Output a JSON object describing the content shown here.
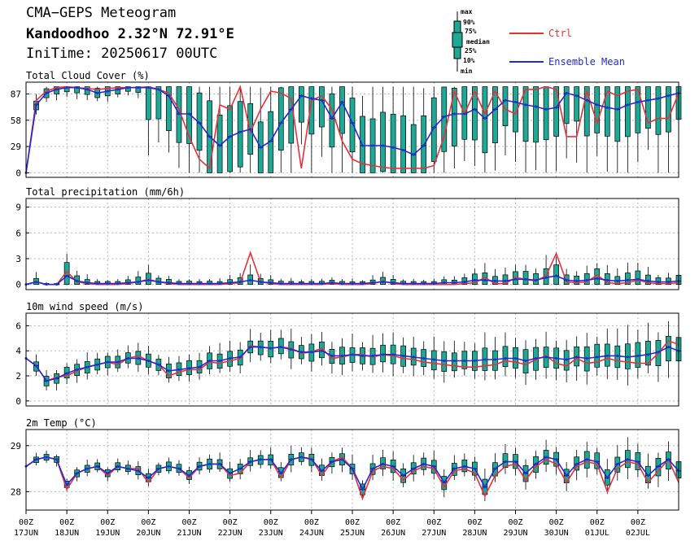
{
  "header": {
    "title": "CMA−GEPS Meteogram",
    "location": "Kandoodhoo 2.32°N 72.91°E",
    "init_time": "IniTime: 20250617 00UTC"
  },
  "legend": {
    "box_labels": [
      "max",
      "90%",
      "75%",
      "median",
      "25%",
      "10%",
      "min"
    ],
    "ctrl": "Ctrl",
    "mean": "Ensemble Mean",
    "ctrl_color": "#e8303a",
    "mean_color": "#1f2bd9",
    "box_color": "#1ea896"
  },
  "chart_data": {
    "type": "line",
    "x_tick_labels": [
      [
        "00Z",
        "17JUN"
      ],
      [
        "00Z",
        "18JUN"
      ],
      [
        "00Z",
        "19JUN"
      ],
      [
        "00Z",
        "20JUN"
      ],
      [
        "00Z",
        "21JUN"
      ],
      [
        "00Z",
        "22JUN"
      ],
      [
        "00Z",
        "23JUN"
      ],
      [
        "00Z",
        "24JUN"
      ],
      [
        "00Z",
        "25JUN"
      ],
      [
        "00Z",
        "26JUN"
      ],
      [
        "00Z",
        "27JUN"
      ],
      [
        "00Z",
        "28JUN"
      ],
      [
        "00Z",
        "29JUN"
      ],
      [
        "00Z",
        "30JUN"
      ],
      [
        "00Z",
        "01JUL"
      ],
      [
        "00Z",
        "02JUL"
      ]
    ],
    "step_hours": 6,
    "panels": [
      {
        "title": "Total Cloud Cover (%)",
        "ylim": [
          -5,
          100
        ],
        "yticks": [
          0,
          29,
          58,
          87
        ],
        "ctrl": [
          0,
          80,
          90,
          94,
          95,
          94,
          93,
          92,
          93,
          94,
          94,
          94,
          95,
          92,
          88,
          70,
          40,
          15,
          5,
          75,
          70,
          95,
          45,
          70,
          90,
          88,
          82,
          5,
          80,
          85,
          70,
          35,
          15,
          10,
          8,
          6,
          5,
          5,
          5,
          5,
          8,
          40,
          90,
          65,
          90,
          65,
          90,
          70,
          65,
          92,
          92,
          95,
          92,
          40,
          40,
          90,
          55,
          90,
          85,
          90,
          92,
          55,
          60,
          60,
          88
        ],
        "mean": [
          0,
          75,
          88,
          92,
          94,
          94,
          92,
          88,
          90,
          92,
          94,
          94,
          94,
          92,
          85,
          65,
          65,
          55,
          40,
          30,
          40,
          45,
          48,
          28,
          35,
          55,
          70,
          85,
          82,
          80,
          60,
          78,
          55,
          30,
          30,
          30,
          28,
          25,
          20,
          30,
          50,
          62,
          65,
          65,
          70,
          60,
          70,
          80,
          78,
          75,
          73,
          70,
          72,
          88,
          85,
          80,
          75,
          72,
          70,
          75,
          78,
          80,
          82,
          85,
          88
        ]
      },
      {
        "title": "Total precipitation (mm/6h)",
        "ylim": [
          -0.6,
          10
        ],
        "yticks": [
          0,
          3,
          6,
          9
        ],
        "ctrl": [
          0,
          0.3,
          0,
          0,
          1.5,
          0.3,
          0.1,
          0,
          0,
          0,
          0.1,
          0.3,
          0.6,
          0.3,
          0.1,
          0,
          0,
          0,
          0,
          0,
          0.1,
          0.2,
          3.7,
          0.3,
          0.1,
          0,
          0,
          0,
          0,
          0,
          0.1,
          0,
          0,
          0,
          0.1,
          0.4,
          0.1,
          0,
          0,
          0,
          0,
          0,
          0,
          0.1,
          0.2,
          0.8,
          0.1,
          0.1,
          0.8,
          0.6,
          0.4,
          1,
          3.6,
          0.3,
          0.2,
          0.3,
          1.1,
          0.2,
          0.1,
          0.2,
          0.5,
          0.2,
          0.1,
          0.1,
          0.2
        ],
        "mean": [
          0,
          0.3,
          0,
          0,
          1,
          0.4,
          0.2,
          0.1,
          0.1,
          0.1,
          0.2,
          0.3,
          0.5,
          0.3,
          0.2,
          0.1,
          0.1,
          0.1,
          0.1,
          0.1,
          0.2,
          0.3,
          0.5,
          0.3,
          0.2,
          0.1,
          0.1,
          0.1,
          0.1,
          0.1,
          0.2,
          0.1,
          0.1,
          0.1,
          0.2,
          0.3,
          0.2,
          0.1,
          0.1,
          0.1,
          0.1,
          0.2,
          0.2,
          0.3,
          0.5,
          0.5,
          0.4,
          0.4,
          0.6,
          0.6,
          0.5,
          0.8,
          1,
          0.5,
          0.4,
          0.5,
          0.7,
          0.5,
          0.4,
          0.5,
          0.6,
          0.4,
          0.3,
          0.3,
          0.4
        ]
      },
      {
        "title": "10m wind speed (m/s)",
        "ylim": [
          -0.4,
          7
        ],
        "yticks": [
          0,
          2,
          4,
          6
        ],
        "ctrl": [
          3.4,
          2.8,
          1.6,
          1.9,
          2,
          2.4,
          2.7,
          2.9,
          3.1,
          2.9,
          3.4,
          3.6,
          3.2,
          2.9,
          2,
          2.3,
          2.5,
          2.5,
          3.1,
          3,
          3.2,
          3.4,
          4.4,
          4.3,
          4.2,
          4.3,
          4.2,
          3.8,
          3.9,
          4.2,
          3.4,
          3.5,
          3.7,
          3.7,
          3.5,
          3.7,
          3.6,
          3.4,
          3.3,
          3.1,
          3,
          2.9,
          2.8,
          2.7,
          2.7,
          2.8,
          2.9,
          3.2,
          3.1,
          2.9,
          3.3,
          3.6,
          3,
          2.8,
          3.4,
          3,
          3.1,
          3.4,
          3.2,
          3.1,
          3,
          3,
          3.8,
          4.8,
          4.5
        ],
        "mean": [
          3.4,
          2.8,
          1.6,
          1.8,
          2.2,
          2.5,
          2.7,
          2.9,
          3.1,
          3.1,
          3.4,
          3.4,
          3.2,
          2.9,
          2.4,
          2.5,
          2.6,
          2.7,
          3.2,
          3.2,
          3.4,
          3.5,
          4.3,
          4.3,
          4.2,
          4.3,
          4.1,
          3.9,
          3.9,
          4,
          3.6,
          3.6,
          3.7,
          3.6,
          3.6,
          3.7,
          3.7,
          3.6,
          3.5,
          3.4,
          3.3,
          3.2,
          3.2,
          3.2,
          3.2,
          3.3,
          3.3,
          3.4,
          3.4,
          3.2,
          3.4,
          3.5,
          3.4,
          3.3,
          3.5,
          3.4,
          3.5,
          3.6,
          3.6,
          3.5,
          3.6,
          3.7,
          3.9,
          4.3,
          4
        ]
      },
      {
        "title": "2m Temp (°C)",
        "ylim": [
          27.6,
          29.35
        ],
        "yticks": [
          28,
          29
        ],
        "yticklabels": [
          "28",
          "29"
        ],
        "ctrl": [
          28.55,
          28.7,
          28.75,
          28.7,
          28.05,
          28.4,
          28.5,
          28.55,
          28.35,
          28.55,
          28.5,
          28.5,
          28.2,
          28.5,
          28.55,
          28.5,
          28.3,
          28.55,
          28.6,
          28.6,
          28.35,
          28.4,
          28.65,
          28.7,
          28.7,
          28.3,
          28.7,
          28.75,
          28.72,
          28.35,
          28.65,
          28.75,
          28.5,
          27.85,
          28.45,
          28.55,
          28.5,
          28.25,
          28.45,
          28.55,
          28.5,
          28.1,
          28.45,
          28.5,
          28.4,
          27.9,
          28.35,
          28.55,
          28.6,
          28.25,
          28.55,
          28.7,
          28.6,
          28.2,
          28.55,
          28.65,
          28.6,
          28,
          28.5,
          28.65,
          28.6,
          28.2,
          28.45,
          28.7,
          28.2
        ],
        "mean": [
          28.55,
          28.7,
          28.75,
          28.7,
          28.15,
          28.4,
          28.5,
          28.55,
          28.4,
          28.55,
          28.5,
          28.45,
          28.3,
          28.5,
          28.55,
          28.5,
          28.35,
          28.55,
          28.6,
          28.6,
          28.4,
          28.5,
          28.65,
          28.7,
          28.7,
          28.4,
          28.7,
          28.75,
          28.7,
          28.45,
          28.65,
          28.7,
          28.5,
          28.05,
          28.5,
          28.6,
          28.55,
          28.35,
          28.5,
          28.6,
          28.55,
          28.2,
          28.5,
          28.55,
          28.5,
          28.1,
          28.5,
          28.65,
          28.65,
          28.4,
          28.6,
          28.75,
          28.7,
          28.35,
          28.6,
          28.7,
          28.65,
          28.3,
          28.6,
          28.7,
          28.65,
          28.35,
          28.55,
          28.7,
          28.45
        ]
      }
    ]
  }
}
